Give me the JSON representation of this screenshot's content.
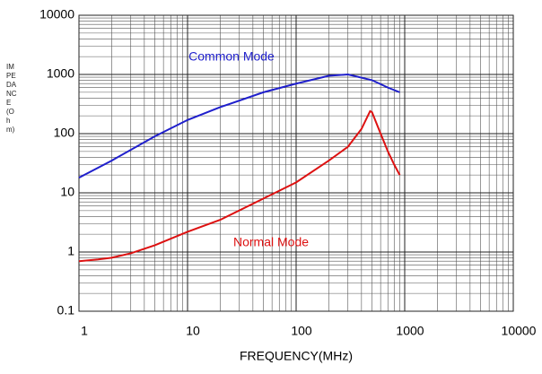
{
  "chart_data": {
    "type": "line",
    "x_label": "FREQUENCY(MHz)",
    "y_label": "IMPEDANCE(Ohm)",
    "log_x": true,
    "log_y": true,
    "grid": true,
    "minor_grid": true,
    "xlim": [
      1,
      10000
    ],
    "xticks": [
      1,
      10,
      100,
      1000,
      10000
    ],
    "ylim": [
      0.1,
      10000
    ],
    "yticks": [
      0.1,
      1,
      10,
      100,
      1000,
      10000
    ],
    "series": [
      {
        "name": "Common Mode",
        "color": "#1f1fcc",
        "x": [
          1,
          2,
          5,
          10,
          20,
          50,
          100,
          200,
          300,
          500,
          700,
          900
        ],
        "values": [
          18,
          35,
          90,
          170,
          280,
          500,
          700,
          950,
          1000,
          800,
          600,
          500
        ]
      },
      {
        "name": "Normal Mode",
        "color": "#dd1111",
        "x": [
          1,
          1.5,
          2,
          3,
          5,
          10,
          20,
          50,
          100,
          200,
          300,
          400,
          480,
          500,
          600,
          700,
          800,
          900
        ],
        "values": [
          0.7,
          0.75,
          0.8,
          0.95,
          1.3,
          2.2,
          3.5,
          8,
          15,
          35,
          60,
          120,
          240,
          230,
          100,
          50,
          30,
          20
        ]
      }
    ]
  }
}
